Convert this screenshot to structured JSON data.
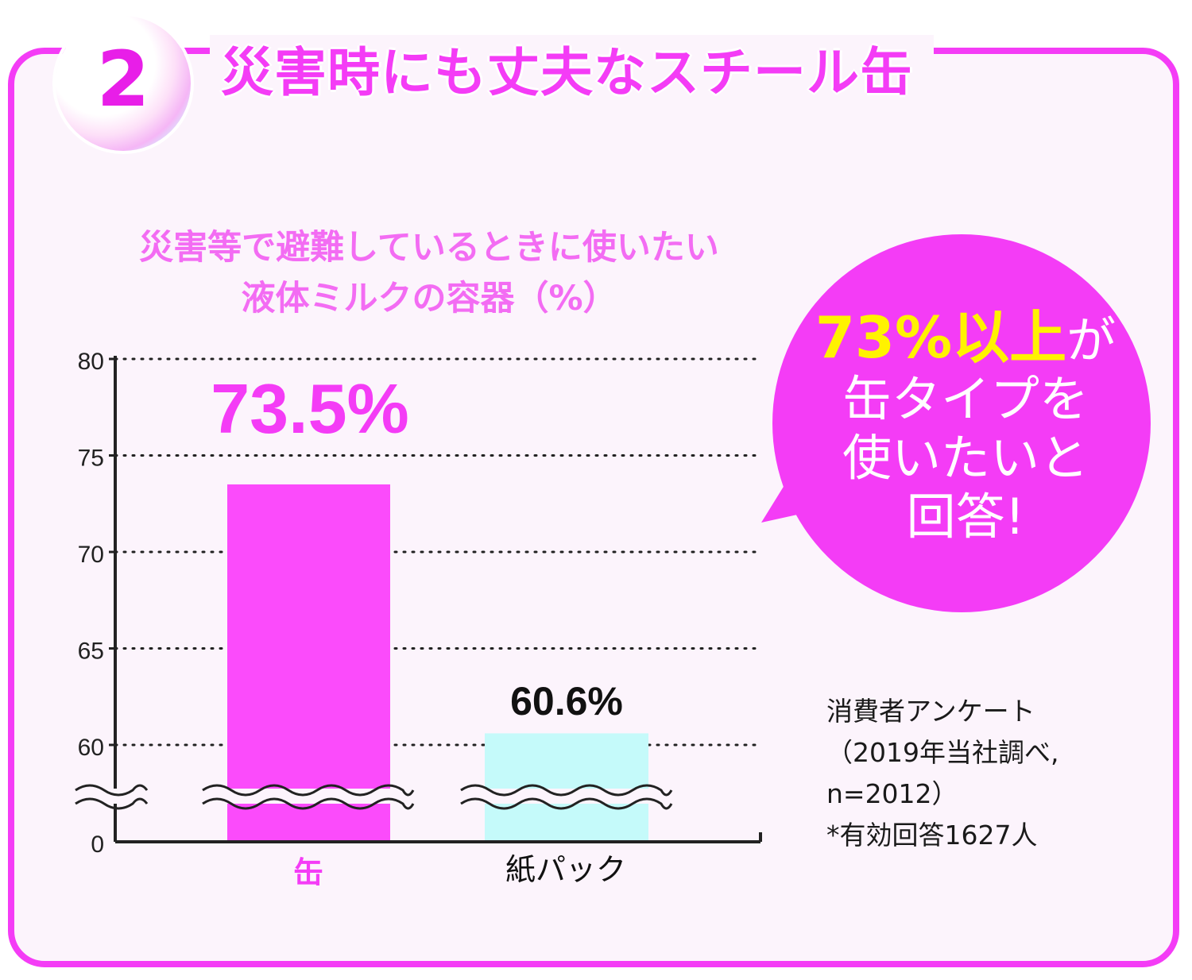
{
  "header": {
    "badge_number": "2",
    "title": "災害時にも丈夫なスチール缶"
  },
  "bubble": {
    "highlight": "73%以上",
    "particle": "が",
    "body": "缶タイプを\n使いたいと\n回答!"
  },
  "footnote": "消費者アンケート\n（2019年当社調べ,\n  n=2012）\n*有効回答1627人",
  "colors": {
    "accent": "#f43cf6",
    "bar_can": "#fb4bfb",
    "bar_carton": "#c5fafa",
    "highlight": "#fff200"
  },
  "chart_data": {
    "type": "bar",
    "title": "災害等で避難しているときに使いたい\n液体ミルクの容器（%）",
    "categories": [
      "缶",
      "紙パック"
    ],
    "values": [
      73.5,
      60.6
    ],
    "value_labels": [
      "73.5%",
      "60.6%"
    ],
    "ylim": [
      0,
      80
    ],
    "axis_break": [
      0,
      57
    ],
    "yticks": [
      0,
      60,
      65,
      70,
      75,
      80
    ],
    "grid": true,
    "xlabel": "",
    "ylabel": ""
  }
}
